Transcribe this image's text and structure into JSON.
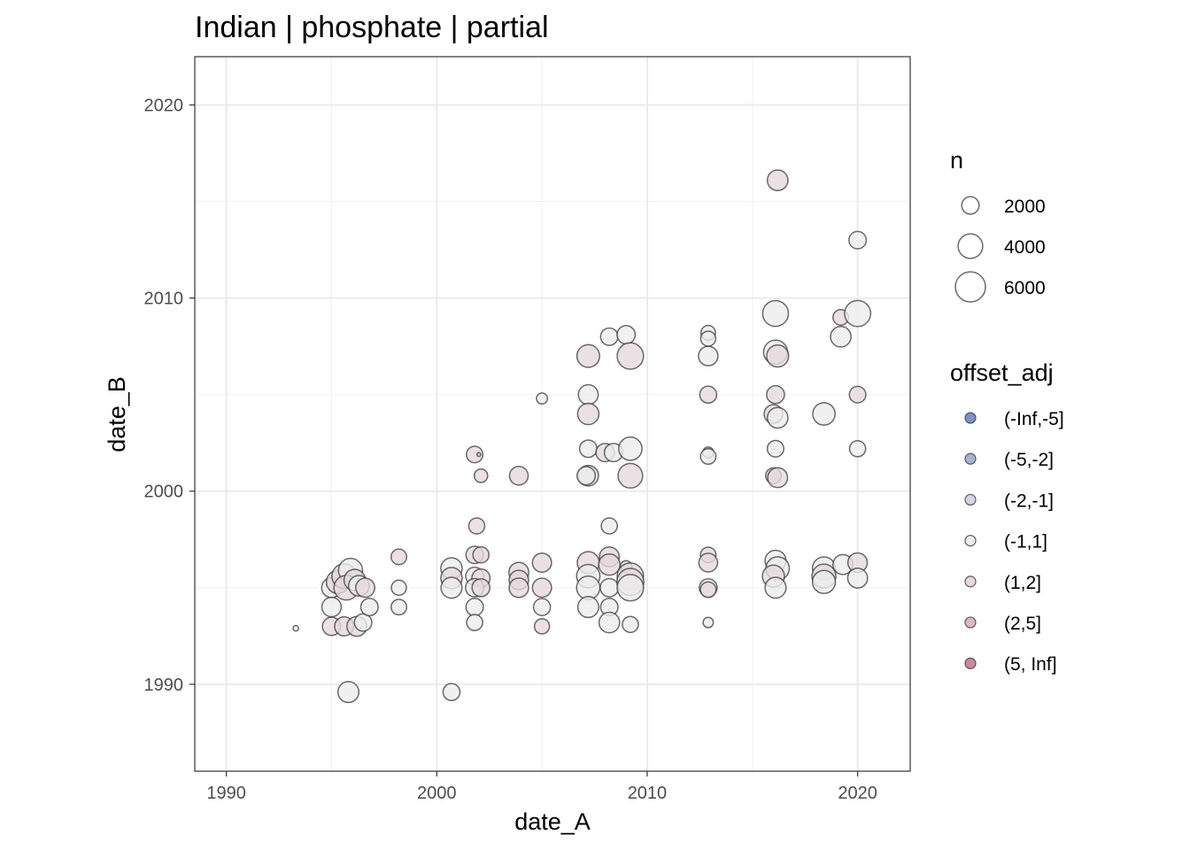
{
  "chart_data": {
    "type": "scatter",
    "title": "Indian | phosphate | partial",
    "xlabel": "date_A",
    "ylabel": "date_B",
    "xlim": [
      1988.5,
      2022.5
    ],
    "ylim": [
      1985.5,
      2022.5
    ],
    "x_ticks": [
      1990,
      2000,
      2010,
      2020
    ],
    "y_ticks": [
      1990,
      2000,
      2010,
      2020
    ],
    "grid": true,
    "legend_placement": "right",
    "size_legend": {
      "title": "n",
      "entries": [
        {
          "label": "2000",
          "value": 2000
        },
        {
          "label": "4000",
          "value": 4000
        },
        {
          "label": "6000",
          "value": 6000
        }
      ]
    },
    "color_legend": {
      "title": "offset_adj",
      "entries": [
        {
          "label": "(-Inf,-5]",
          "color": "#7b93c9"
        },
        {
          "label": "(-5,-2]",
          "color": "#a6b3d4"
        },
        {
          "label": "(-2,-1]",
          "color": "#d1d5e3"
        },
        {
          "label": "(-1,1]",
          "color": "#ececec"
        },
        {
          "label": "(1,2]",
          "color": "#e6d8dc"
        },
        {
          "label": "(2,5]",
          "color": "#deb9c3"
        },
        {
          "label": "(5, Inf]",
          "color": "#c98a9c"
        }
      ]
    },
    "points": [
      {
        "x": 1993.3,
        "y": 1992.9,
        "n": 200,
        "c": "(-1,1]"
      },
      {
        "x": 1995.0,
        "y": 1995.0,
        "n": 2600,
        "c": "(-1,1]"
      },
      {
        "x": 1995.3,
        "y": 1995.3,
        "n": 3500,
        "c": "(1,2]"
      },
      {
        "x": 1995.6,
        "y": 1995.6,
        "n": 4000,
        "c": "(1,2]"
      },
      {
        "x": 1995.9,
        "y": 1995.9,
        "n": 3800,
        "c": "(-1,1]"
      },
      {
        "x": 1995.7,
        "y": 1995.0,
        "n": 4000,
        "c": "(1,2]"
      },
      {
        "x": 1996.1,
        "y": 1995.4,
        "n": 3000,
        "c": "(1,2]"
      },
      {
        "x": 1996.3,
        "y": 1995.1,
        "n": 2800,
        "c": "(-1,1]"
      },
      {
        "x": 1996.6,
        "y": 1995.0,
        "n": 2400,
        "c": "(1,2]"
      },
      {
        "x": 1995.0,
        "y": 1994.0,
        "n": 2500,
        "c": "(-1,1]"
      },
      {
        "x": 1995.0,
        "y": 1993.0,
        "n": 2200,
        "c": "(1,2]"
      },
      {
        "x": 1995.6,
        "y": 1993.0,
        "n": 2400,
        "c": "(1,2]"
      },
      {
        "x": 1996.2,
        "y": 1993.0,
        "n": 2600,
        "c": "(1,2]"
      },
      {
        "x": 1996.5,
        "y": 1993.2,
        "n": 2000,
        "c": "(-1,1]"
      },
      {
        "x": 1996.8,
        "y": 1994.0,
        "n": 2000,
        "c": "(-1,1]"
      },
      {
        "x": 1995.8,
        "y": 1989.6,
        "n": 2900,
        "c": "(-1,1]"
      },
      {
        "x": 1998.2,
        "y": 1996.6,
        "n": 1600,
        "c": "(1,2]"
      },
      {
        "x": 1998.2,
        "y": 1995.0,
        "n": 1500,
        "c": "(-1,1]"
      },
      {
        "x": 1998.2,
        "y": 1994.0,
        "n": 1600,
        "c": "(-1,1]"
      },
      {
        "x": 2000.7,
        "y": 1989.6,
        "n": 1900,
        "c": "(-1,1]"
      },
      {
        "x": 2000.7,
        "y": 1996.0,
        "n": 3000,
        "c": "(-1,1]"
      },
      {
        "x": 2000.7,
        "y": 1995.5,
        "n": 3000,
        "c": "(1,2]"
      },
      {
        "x": 2000.7,
        "y": 1995.0,
        "n": 2900,
        "c": "(-1,1]"
      },
      {
        "x": 2001.8,
        "y": 2001.9,
        "n": 1800,
        "c": "(1,2]"
      },
      {
        "x": 2002.0,
        "y": 2001.9,
        "n": 100,
        "c": "(1,2]"
      },
      {
        "x": 2002.1,
        "y": 2000.8,
        "n": 1200,
        "c": "(1,2]"
      },
      {
        "x": 2001.9,
        "y": 1998.2,
        "n": 1700,
        "c": "(1,2]"
      },
      {
        "x": 2001.8,
        "y": 1996.7,
        "n": 2000,
        "c": "(1,2]"
      },
      {
        "x": 2002.1,
        "y": 1996.7,
        "n": 1700,
        "c": "(1,2]"
      },
      {
        "x": 2001.8,
        "y": 1995.6,
        "n": 2100,
        "c": "(-1,1]"
      },
      {
        "x": 2002.1,
        "y": 1995.5,
        "n": 2200,
        "c": "(1,2]"
      },
      {
        "x": 2001.8,
        "y": 1995.0,
        "n": 2200,
        "c": "(-1,1]"
      },
      {
        "x": 2002.1,
        "y": 1995.0,
        "n": 2100,
        "c": "(1,2]"
      },
      {
        "x": 2001.8,
        "y": 1994.0,
        "n": 2000,
        "c": "(-1,1]"
      },
      {
        "x": 2001.8,
        "y": 1993.2,
        "n": 1700,
        "c": "(-1,1]"
      },
      {
        "x": 2003.9,
        "y": 2000.8,
        "n": 2300,
        "c": "(1,2]"
      },
      {
        "x": 2003.9,
        "y": 1995.8,
        "n": 2600,
        "c": "(1,2]"
      },
      {
        "x": 2003.9,
        "y": 1995.4,
        "n": 2500,
        "c": "(1,2]"
      },
      {
        "x": 2003.9,
        "y": 1995.0,
        "n": 2500,
        "c": "(1,2]"
      },
      {
        "x": 2005.0,
        "y": 2004.8,
        "n": 800,
        "c": "(-1,1]"
      },
      {
        "x": 2005.0,
        "y": 1996.3,
        "n": 2400,
        "c": "(1,2]"
      },
      {
        "x": 2005.0,
        "y": 1995.0,
        "n": 2400,
        "c": "(1,2]"
      },
      {
        "x": 2005.0,
        "y": 1994.0,
        "n": 1900,
        "c": "(-1,1]"
      },
      {
        "x": 2005.0,
        "y": 1993.0,
        "n": 1500,
        "c": "(1,2]"
      },
      {
        "x": 2007.2,
        "y": 2007.0,
        "n": 3400,
        "c": "(1,2]"
      },
      {
        "x": 2007.2,
        "y": 2005.0,
        "n": 2600,
        "c": "(-1,1]"
      },
      {
        "x": 2007.2,
        "y": 2004.0,
        "n": 3000,
        "c": "(1,2]"
      },
      {
        "x": 2007.2,
        "y": 2002.2,
        "n": 2000,
        "c": "(-1,1]"
      },
      {
        "x": 2007.2,
        "y": 2000.8,
        "n": 2800,
        "c": "(1,2]"
      },
      {
        "x": 2007.1,
        "y": 2000.8,
        "n": 2200,
        "c": "(-1,1]"
      },
      {
        "x": 2007.2,
        "y": 1996.3,
        "n": 3200,
        "c": "(1,2]"
      },
      {
        "x": 2007.2,
        "y": 1995.6,
        "n": 3600,
        "c": "(-1,1]"
      },
      {
        "x": 2007.2,
        "y": 1995.0,
        "n": 3600,
        "c": "(-1,1]"
      },
      {
        "x": 2007.2,
        "y": 1994.0,
        "n": 2900,
        "c": "(-1,1]"
      },
      {
        "x": 2008.2,
        "y": 2008.0,
        "n": 2000,
        "c": "(-1,1]"
      },
      {
        "x": 2008.0,
        "y": 2002.0,
        "n": 2200,
        "c": "(1,2]"
      },
      {
        "x": 2008.4,
        "y": 2002.0,
        "n": 2200,
        "c": "(-1,1]"
      },
      {
        "x": 2008.2,
        "y": 1998.2,
        "n": 1700,
        "c": "(-1,1]"
      },
      {
        "x": 2008.2,
        "y": 1996.6,
        "n": 2600,
        "c": "(1,2]"
      },
      {
        "x": 2008.2,
        "y": 1996.2,
        "n": 3000,
        "c": "(1,2]"
      },
      {
        "x": 2008.2,
        "y": 1995.0,
        "n": 2200,
        "c": "(-1,1]"
      },
      {
        "x": 2008.2,
        "y": 1994.0,
        "n": 2000,
        "c": "(-1,1]"
      },
      {
        "x": 2008.2,
        "y": 1993.2,
        "n": 2800,
        "c": "(-1,1]"
      },
      {
        "x": 2009.0,
        "y": 2008.1,
        "n": 2200,
        "c": "(-1,1]"
      },
      {
        "x": 2009.2,
        "y": 2007.0,
        "n": 4600,
        "c": "(1,2]"
      },
      {
        "x": 2009.2,
        "y": 2002.2,
        "n": 3600,
        "c": "(-1,1]"
      },
      {
        "x": 2009.2,
        "y": 2000.8,
        "n": 4000,
        "c": "(1,2]"
      },
      {
        "x": 2009.0,
        "y": 1996.1,
        "n": 900,
        "c": "(1,2]"
      },
      {
        "x": 2009.2,
        "y": 1995.6,
        "n": 4600,
        "c": "(1,2]"
      },
      {
        "x": 2009.2,
        "y": 1995.3,
        "n": 4800,
        "c": "(1,2]"
      },
      {
        "x": 2009.2,
        "y": 1995.0,
        "n": 4600,
        "c": "(-1,1]"
      },
      {
        "x": 2009.2,
        "y": 1993.1,
        "n": 1700,
        "c": "(-1,1]"
      },
      {
        "x": 2012.9,
        "y": 2008.2,
        "n": 1400,
        "c": "(-1,1]"
      },
      {
        "x": 2012.9,
        "y": 2007.9,
        "n": 1500,
        "c": "(-1,1]"
      },
      {
        "x": 2012.9,
        "y": 2007.0,
        "n": 2500,
        "c": "(-1,1]"
      },
      {
        "x": 2012.9,
        "y": 2005.0,
        "n": 1900,
        "c": "(1,2]"
      },
      {
        "x": 2012.9,
        "y": 2002.0,
        "n": 800,
        "c": "(1,2]"
      },
      {
        "x": 2012.9,
        "y": 2001.8,
        "n": 1600,
        "c": "(-1,1]"
      },
      {
        "x": 2012.9,
        "y": 1996.7,
        "n": 1600,
        "c": "(1,2]"
      },
      {
        "x": 2012.9,
        "y": 1996.3,
        "n": 2300,
        "c": "(1,2]"
      },
      {
        "x": 2012.9,
        "y": 1995.0,
        "n": 2100,
        "c": "(-1,1]"
      },
      {
        "x": 2012.9,
        "y": 1994.9,
        "n": 1600,
        "c": "(1,2]"
      },
      {
        "x": 2012.9,
        "y": 1993.2,
        "n": 700,
        "c": "(-1,1]"
      },
      {
        "x": 2016.2,
        "y": 2016.1,
        "n": 2800,
        "c": "(1,2]"
      },
      {
        "x": 2016.1,
        "y": 2009.2,
        "n": 4400,
        "c": "(-1,1]"
      },
      {
        "x": 2016.1,
        "y": 2007.2,
        "n": 3800,
        "c": "(-1,1]"
      },
      {
        "x": 2016.2,
        "y": 2007.0,
        "n": 3200,
        "c": "(1,2]"
      },
      {
        "x": 2016.1,
        "y": 2005.0,
        "n": 2100,
        "c": "(1,2]"
      },
      {
        "x": 2016.0,
        "y": 2004.0,
        "n": 2300,
        "c": "(1,2]"
      },
      {
        "x": 2016.2,
        "y": 2003.8,
        "n": 2800,
        "c": "(-1,1]"
      },
      {
        "x": 2016.1,
        "y": 2002.2,
        "n": 1800,
        "c": "(-1,1]"
      },
      {
        "x": 2016.0,
        "y": 2000.8,
        "n": 1600,
        "c": "(1,2]"
      },
      {
        "x": 2016.2,
        "y": 2000.7,
        "n": 2600,
        "c": "(1,2]"
      },
      {
        "x": 2016.1,
        "y": 1996.4,
        "n": 2900,
        "c": "(-1,1]"
      },
      {
        "x": 2016.2,
        "y": 1996.0,
        "n": 3600,
        "c": "(-1,1]"
      },
      {
        "x": 2016.0,
        "y": 1995.6,
        "n": 3200,
        "c": "(1,2]"
      },
      {
        "x": 2016.1,
        "y": 1995.0,
        "n": 2900,
        "c": "(-1,1]"
      },
      {
        "x": 2018.4,
        "y": 2004.0,
        "n": 3300,
        "c": "(-1,1]"
      },
      {
        "x": 2018.4,
        "y": 1996.0,
        "n": 3500,
        "c": "(-1,1]"
      },
      {
        "x": 2018.4,
        "y": 1995.6,
        "n": 3800,
        "c": "(1,2]"
      },
      {
        "x": 2018.4,
        "y": 1995.3,
        "n": 3500,
        "c": "(-1,1]"
      },
      {
        "x": 2019.2,
        "y": 2009.0,
        "n": 1600,
        "c": "(1,2]"
      },
      {
        "x": 2019.2,
        "y": 2008.0,
        "n": 2800,
        "c": "(-1,1]"
      },
      {
        "x": 2019.3,
        "y": 1996.2,
        "n": 2600,
        "c": "(-1,1]"
      },
      {
        "x": 2020.0,
        "y": 2013.0,
        "n": 2000,
        "c": "(-1,1]"
      },
      {
        "x": 2020.0,
        "y": 2009.2,
        "n": 4500,
        "c": "(-1,1]"
      },
      {
        "x": 2020.0,
        "y": 2005.0,
        "n": 1800,
        "c": "(1,2]"
      },
      {
        "x": 2020.0,
        "y": 2002.2,
        "n": 1700,
        "c": "(-1,1]"
      },
      {
        "x": 2020.0,
        "y": 1996.3,
        "n": 2500,
        "c": "(1,2]"
      },
      {
        "x": 2020.0,
        "y": 1995.5,
        "n": 2600,
        "c": "(-1,1]"
      }
    ]
  }
}
